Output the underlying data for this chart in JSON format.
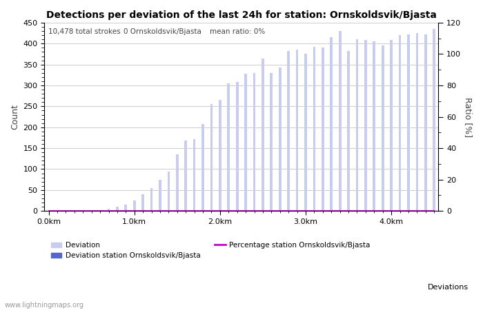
{
  "title": "Detections per deviation of the last 24h for station: Ornskoldsvik/Bjasta",
  "annotation_parts": [
    "10,478 total strokes",
    "0 Ornskoldsvik/Bjasta",
    "mean ratio: 0%"
  ],
  "ylabel_left": "Count",
  "ylabel_right": "Ratio [%]",
  "xlabel_right": "Deviations",
  "watermark": "www.lightningmaps.org",
  "bar_color_light": "#c8ccee",
  "bar_color_dark": "#5566cc",
  "line_color": "#cc00cc",
  "ylim_left": [
    0,
    450
  ],
  "ylim_right": [
    0,
    120
  ],
  "yticks_left": [
    0,
    50,
    100,
    150,
    200,
    250,
    300,
    350,
    400,
    450
  ],
  "yticks_right": [
    0,
    20,
    40,
    60,
    80,
    100,
    120
  ],
  "xtick_labels": [
    "0.0km",
    "1.0km",
    "2.0km",
    "3.0km",
    "4.0km"
  ],
  "num_bars": 46,
  "bar_values": [
    0,
    0,
    0,
    0,
    0,
    0,
    2,
    5,
    10,
    15,
    25,
    40,
    55,
    75,
    95,
    135,
    168,
    172,
    208,
    255,
    265,
    305,
    308,
    328,
    330,
    364,
    330,
    343,
    383,
    385,
    375,
    393,
    390,
    415,
    430,
    383,
    410,
    408,
    405,
    395,
    408,
    420,
    422,
    425,
    422,
    435
  ],
  "station_bar_values": [
    0,
    0,
    0,
    0,
    0,
    0,
    0,
    0,
    0,
    0,
    0,
    0,
    0,
    0,
    0,
    0,
    0,
    0,
    0,
    0,
    0,
    0,
    0,
    0,
    0,
    0,
    0,
    0,
    0,
    0,
    0,
    0,
    0,
    0,
    0,
    0,
    0,
    0,
    0,
    0,
    0,
    0,
    0,
    0,
    0,
    0
  ],
  "legend_deviation_label": "Deviation",
  "legend_station_label": "Deviation station Ornskoldsvik/Bjasta",
  "legend_percentage_label": "Percentage station Ornskoldsvik/Bjasta",
  "bar_width": 0.3,
  "background_color": "#ffffff",
  "grid_color": "#cccccc",
  "title_fontsize": 10,
  "axis_fontsize": 8,
  "annotation_fontsize": 7.5
}
